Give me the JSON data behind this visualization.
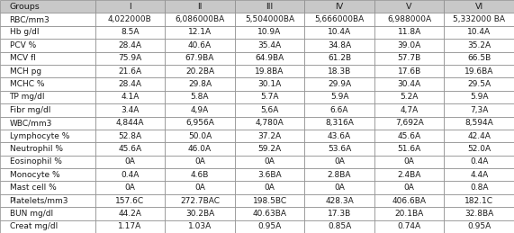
{
  "columns": [
    "Groups",
    "I",
    "II",
    "III",
    "IV",
    "V",
    "VI"
  ],
  "rows": [
    [
      "RBC/mm3",
      "4,022000B",
      "6,086000BA",
      "5,504000BA",
      "5,666000BA",
      "6,988000A",
      "5,332000 BA"
    ],
    [
      "Hb g/dl",
      "8.5A",
      "12.1A",
      "10.9A",
      "10.4A",
      "11.8A",
      "10.4A"
    ],
    [
      "PCV %",
      "28.4A",
      "40.6A",
      "35.4A",
      "34.8A",
      "39.0A",
      "35.2A"
    ],
    [
      "MCV fl",
      "75.9A",
      "67.9BA",
      "64.9BA",
      "61.2B",
      "57.7B",
      "66.5B"
    ],
    [
      "MCH pg",
      "21.6A",
      "20.2BA",
      "19.8BA",
      "18.3B",
      "17.6B",
      "19.6BA"
    ],
    [
      "MCHC %",
      "28.4A",
      "29.8A",
      "30.1A",
      "29.9A",
      "30.4A",
      "29.5A"
    ],
    [
      "TP mg/dl",
      "4.1A",
      "5.8A",
      "5.7A",
      "5.9A",
      "5.2A",
      "5.9A"
    ],
    [
      "Fibr mg/dl",
      "3.4A",
      "4,9A",
      "5,6A",
      "6.6A",
      "4,7A",
      "7,3A"
    ],
    [
      "WBC/mm3",
      "4,844A",
      "6,956A",
      "4,780A",
      "8,316A",
      "7,692A",
      "8,594A"
    ],
    [
      "Lymphocyte %",
      "52.8A",
      "50.0A",
      "37.2A",
      "43.6A",
      "45.6A",
      "42.4A"
    ],
    [
      "Neutrophil %",
      "45.6A",
      "46.0A",
      "59.2A",
      "53.6A",
      "51.6A",
      "52.0A"
    ],
    [
      "Eosinophil %",
      "0A",
      "0A",
      "0A",
      "0A",
      "0A",
      "0.4A"
    ],
    [
      "Monocyte %",
      "0.4A",
      "4.6B",
      "3.6BA",
      "2.8BA",
      "2.4BA",
      "4.4A"
    ],
    [
      "Mast cell %",
      "0A",
      "0A",
      "0A",
      "0A",
      "0A",
      "0.8A"
    ],
    [
      "Platelets/mm3",
      "157.6C",
      "272.7BAC",
      "198.5BC",
      "428.3A",
      "406.6BA",
      "182.1C"
    ],
    [
      "BUN mg/dl",
      "44.2A",
      "30.2BA",
      "40.63BA",
      "17.3B",
      "20.1BA",
      "32.8BA"
    ],
    [
      "Creat mg/dl",
      "1.17A",
      "1.03A",
      "0.95A",
      "0.85A",
      "0.74A",
      "0.95A"
    ]
  ],
  "header_bg": "#c8c8c8",
  "data_bg": "#ffffff",
  "text_color": "#1a1a1a",
  "font_size": 6.5,
  "header_font_size": 6.8,
  "edge_color": "#888888",
  "edge_linewidth": 0.5,
  "fig_width": 5.71,
  "fig_height": 2.59,
  "dpi": 100
}
